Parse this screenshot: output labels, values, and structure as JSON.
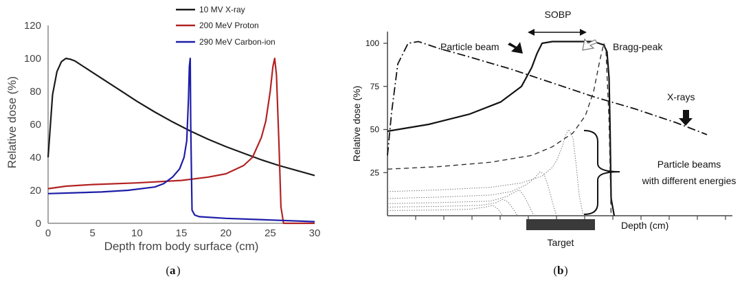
{
  "colors": {
    "xray": "#1a1a1a",
    "proton": "#b22222",
    "carbon": "#1c1ca8",
    "target": "#3a3a3a"
  },
  "chart_data": [
    {
      "type": "line",
      "xlabel": "Depth from body surface (cm)",
      "ylabel": "Relative dose (%)",
      "xlim": [
        0,
        30
      ],
      "ylim": [
        0,
        120
      ],
      "xticks": [
        0,
        5,
        10,
        15,
        20,
        25,
        30
      ],
      "yticks": [
        0,
        20,
        40,
        60,
        80,
        100,
        120
      ],
      "legend_position": "top-right",
      "caption": "a",
      "series": [
        {
          "name": "10 MV X-ray",
          "x": [
            0,
            0.5,
            1,
            1.5,
            2,
            2.5,
            3,
            4,
            5,
            6,
            8,
            10,
            12,
            14,
            16,
            18,
            20,
            22,
            24,
            26,
            28,
            30
          ],
          "y": [
            40,
            78,
            92,
            98,
            100,
            99.5,
            98.5,
            95,
            91.5,
            88,
            81,
            74,
            67.5,
            61.5,
            56,
            51,
            46.5,
            42.5,
            38.5,
            35,
            32,
            29
          ]
        },
        {
          "name": "200 MeV Proton",
          "x": [
            0,
            2,
            5,
            10,
            15,
            18,
            20,
            22,
            23,
            24,
            24.5,
            25,
            25.3,
            25.5,
            25.7,
            26,
            26.2,
            26.5,
            28,
            30
          ],
          "y": [
            21,
            22.5,
            23.5,
            24.5,
            26,
            28,
            30,
            35,
            40,
            52,
            62,
            80,
            95,
            100,
            90,
            45,
            10,
            0,
            0,
            0
          ]
        },
        {
          "name": "290 MeV Carbon-ion",
          "x": [
            0,
            3,
            6,
            9,
            12,
            13,
            14,
            14.8,
            15.3,
            15.6,
            15.8,
            15.9,
            16.0,
            16.05,
            16.2,
            16.5,
            17,
            20,
            25,
            30
          ],
          "y": [
            18,
            18.5,
            19,
            20,
            22,
            24,
            28,
            33,
            40,
            50,
            75,
            95,
            100,
            60,
            8,
            5,
            4,
            3,
            2,
            1
          ]
        }
      ]
    },
    {
      "type": "line",
      "xlabel": "Depth (cm)",
      "ylabel": "Relative dose (%)",
      "yticks": [
        25,
        50,
        75,
        100
      ],
      "caption": "b",
      "annotations": [
        "SOBP",
        "Particle beam",
        "Bragg-peak",
        "X-rays",
        "Particle beams",
        "with different energies",
        "Target"
      ],
      "series": [
        {
          "name": "X-rays",
          "x": [
            0,
            0.4,
            1,
            2,
            3,
            4,
            5,
            8,
            12,
            16,
            20,
            24,
            28,
            31
          ],
          "y": [
            35,
            60,
            88,
            100,
            101,
            99,
            97,
            92,
            85,
            77,
            69,
            62,
            54,
            47
          ]
        },
        {
          "name": "Particle beam",
          "x": [
            0,
            4,
            8,
            11,
            13,
            14,
            14.5,
            15,
            16,
            18,
            20,
            21,
            21.3,
            21.5,
            21.6,
            21.7,
            22
          ],
          "y": [
            49,
            53,
            59,
            66,
            75,
            86,
            94,
            100,
            101,
            101,
            101,
            99,
            95,
            80,
            50,
            10,
            0
          ]
        },
        {
          "x": [
            0,
            5,
            10,
            14,
            16,
            18,
            19.2,
            20,
            20.6,
            21,
            21.2,
            21.5,
            21.7
          ],
          "y": [
            27,
            28.5,
            31,
            35,
            40,
            48,
            58,
            72,
            90,
            100,
            96,
            55,
            0
          ]
        },
        {
          "x": [
            0,
            5,
            10,
            13,
            15,
            16,
            16.5,
            17,
            17.3,
            17.6,
            18,
            18.3,
            18.6,
            19
          ],
          "y": [
            14,
            15,
            16.5,
            19,
            23,
            28,
            33,
            41,
            47,
            50,
            45,
            30,
            12,
            0
          ]
        },
        {
          "x": [
            0,
            5,
            10,
            12,
            13.5,
            14.3,
            14.8,
            15.2,
            15.6,
            16,
            16.4
          ],
          "y": [
            10,
            10.8,
            12,
            14,
            18,
            22,
            25.5,
            24,
            17,
            8,
            0
          ]
        },
        {
          "x": [
            0,
            5,
            10,
            11.5,
            12.3,
            12.8,
            13.3,
            13.8,
            14.2
          ],
          "y": [
            7,
            7.6,
            8.5,
            11,
            13.5,
            15,
            11,
            5,
            0
          ]
        },
        {
          "x": [
            0,
            5,
            9,
            10.5,
            11.2,
            11.7,
            12.2,
            12.6
          ],
          "y": [
            5,
            5.4,
            6,
            7.5,
            9.5,
            8,
            4,
            0
          ]
        },
        {
          "x": [
            0,
            5,
            8,
            9.5,
            10.2,
            10.7,
            11.2
          ],
          "y": [
            3,
            3.3,
            3.8,
            5,
            6,
            4,
            0
          ]
        }
      ]
    }
  ],
  "figure_a": {
    "legend": [
      "10 MV X-ray",
      "200 MeV Proton",
      "290 MeV Carbon-ion"
    ],
    "ylabel": "Relative dose (%)",
    "xlabel": "Depth from body surface (cm)",
    "caption_open": "(",
    "caption_letter": "a",
    "caption_close": ")"
  },
  "figure_b": {
    "sobp": "SOBP",
    "particle_beam": "Particle beam",
    "bragg_peak": "Bragg-peak",
    "xrays": "X-rays",
    "particle_beams_l1": "Particle beams",
    "particle_beams_l2": "with different energies",
    "ylabel": "Relative dose (%)",
    "xlabel": "Depth (cm)",
    "target": "Target",
    "caption_open": "(",
    "caption_letter": "b",
    "caption_close": ")"
  }
}
